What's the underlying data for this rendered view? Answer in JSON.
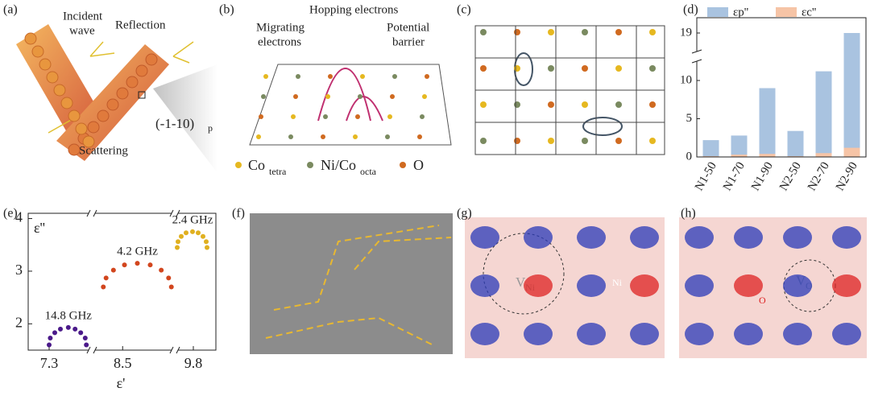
{
  "panels": {
    "a": {
      "label": "(a)",
      "incident_wave": [
        "Incident",
        "wave"
      ],
      "reflection": "Reflection",
      "plane": "(-1-10)",
      "plane_sub": "p",
      "scattering": "Scattering"
    },
    "b": {
      "label": "(b)",
      "hopping": "Hopping electrons",
      "migrating": [
        "Migrating",
        "electrons"
      ],
      "barrier": [
        "Potential",
        "barrier"
      ],
      "legend": [
        {
          "text": "Co",
          "sub": "tetra"
        },
        {
          "text": "Ni/Co",
          "sub": "octa"
        },
        {
          "text": "O"
        }
      ]
    },
    "c": {
      "label": "(c)"
    },
    "f": {
      "label": "(f)"
    },
    "g": {
      "label": "(g)",
      "vacancy": "V",
      "vacancy_sub": "Ni",
      "site": "Ni"
    },
    "h": {
      "label": "(h)",
      "vacancy": "V",
      "vacancy_sub": "O",
      "site": "O"
    }
  },
  "chart_data": [
    {
      "type": "bar",
      "label": "(d)",
      "categories": [
        "N1-50",
        "N1-70",
        "N1-90",
        "N2-50",
        "N2-70",
        "N2-90"
      ],
      "series": [
        {
          "name": "εp''",
          "color": "#a9c3e0",
          "values": [
            2.2,
            2.8,
            9.0,
            3.4,
            11.2,
            19
          ]
        },
        {
          "name": "εc''",
          "color": "#f6c4a6",
          "values": [
            0.1,
            0.3,
            0.4,
            0.1,
            0.5,
            1.2
          ]
        }
      ],
      "ylim": [
        0,
        20
      ],
      "ybreak": [
        12,
        18
      ],
      "yticks": [
        0,
        5,
        10,
        19
      ],
      "legend": "top"
    },
    {
      "type": "scatter",
      "label": "(e)",
      "ylabel": "ε''",
      "xlabel": "ε'",
      "xsegments": [
        [
          7.15,
          7.65
        ],
        [
          8.2,
          9.05
        ],
        [
          9.6,
          10.05
        ]
      ],
      "xticks": [
        7.3,
        8.5,
        9.8
      ],
      "ylim": [
        1.5,
        4.1
      ],
      "yticks": [
        2,
        3,
        4
      ],
      "series": [
        {
          "name": "14.8 GHz",
          "color": "#4b1a8a",
          "x": [
            7.3,
            7.31,
            7.35,
            7.4,
            7.47,
            7.53,
            7.58,
            7.62,
            7.63
          ],
          "y": [
            1.6,
            1.73,
            1.83,
            1.9,
            1.93,
            1.9,
            1.83,
            1.73,
            1.6
          ]
        },
        {
          "name": "4.2 GHz",
          "color": "#d2461e",
          "x": [
            8.29,
            8.32,
            8.4,
            8.52,
            8.66,
            8.8,
            8.92,
            9.0,
            9.03
          ],
          "y": [
            2.7,
            2.87,
            3.02,
            3.12,
            3.15,
            3.12,
            3.02,
            2.87,
            2.7
          ]
        },
        {
          "name": "2.4 GHz",
          "color": "#e0b020",
          "x": [
            9.6,
            9.61,
            9.65,
            9.71,
            9.79,
            9.86,
            9.92,
            9.96,
            9.97
          ],
          "y": [
            3.45,
            3.56,
            3.66,
            3.73,
            3.75,
            3.73,
            3.66,
            3.56,
            3.45
          ]
        }
      ]
    }
  ]
}
